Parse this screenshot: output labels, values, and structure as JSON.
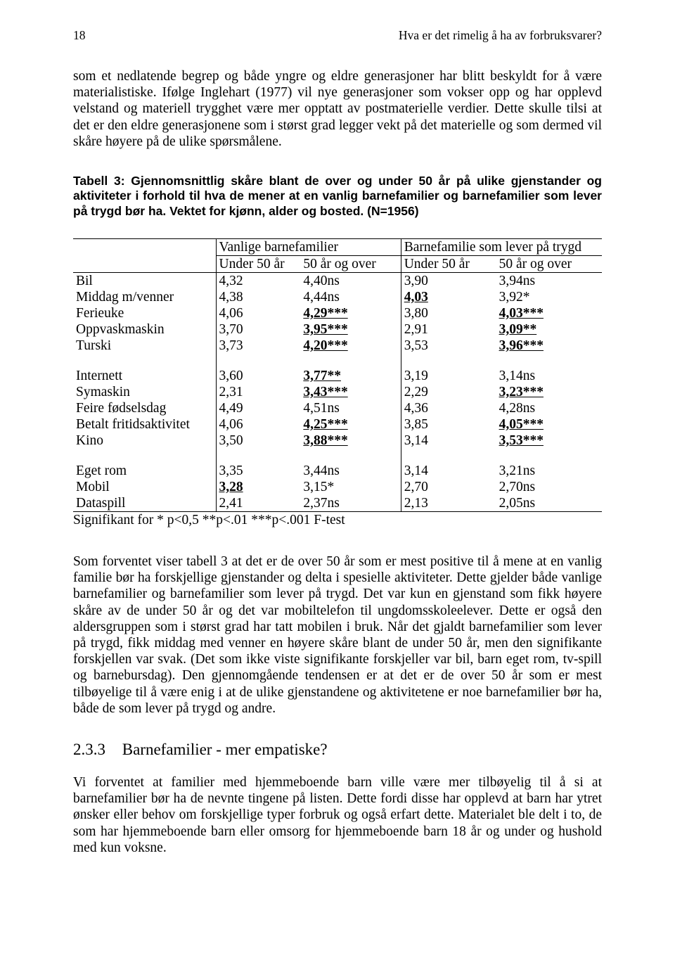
{
  "header": {
    "page_number": "18",
    "running_title": "Hva er det rimelig å ha av forbruksvarer?"
  },
  "para1": "som et nedlatende begrep og både yngre og eldre generasjoner har blitt beskyldt for å være materialistiske. Ifølge Inglehart (1977) vil nye generasjoner som vokser opp og har opplevd velstand og materiell trygghet være mer opptatt av postmaterielle verdier. Dette skulle tilsi at det er den eldre generasjonene som i størst grad legger vekt på det materielle og som dermed vil skåre høyere på de ulike spørsmålene.",
  "caption": "Tabell 3: Gjennomsnittlig skåre blant de over og under 50 år på ulike gjenstander og aktiviteter i forhold til hva de mener at en vanlig barnefamilier og barnefamilier som lever på trygd bør ha. Vektet for kjønn, alder og bosted. (N=1956)",
  "table": {
    "group1_label": "Vanlige barnefamilier",
    "group2_label": "Barnefamilie som lever på trygd",
    "sub_under": "Under 50 år",
    "sub_over": "50 år og over",
    "blocks": [
      [
        {
          "label": "Bil",
          "v": [
            "4,32",
            "4,40ns",
            "3,90",
            "3,94ns"
          ],
          "b": [
            false,
            false,
            false,
            false
          ],
          "u": [
            false,
            false,
            false,
            false
          ]
        },
        {
          "label": "Middag m/venner",
          "v": [
            "4,38",
            "4,44ns",
            "4,03",
            "3,92*"
          ],
          "b": [
            false,
            false,
            true,
            false
          ],
          "u": [
            false,
            false,
            true,
            false
          ]
        },
        {
          "label": "Ferieuke",
          "v": [
            "4,06",
            "4,29***",
            "3,80",
            "4,03***"
          ],
          "b": [
            false,
            true,
            false,
            true
          ],
          "u": [
            false,
            true,
            false,
            true
          ]
        },
        {
          "label": "Oppvaskmaskin",
          "v": [
            "3,70",
            "3,95***",
            "2,91",
            "3,09**"
          ],
          "b": [
            false,
            true,
            false,
            true
          ],
          "u": [
            false,
            true,
            false,
            true
          ]
        },
        {
          "label": "Turski",
          "v": [
            "3,73",
            "4,20***",
            "3,53",
            "3,96***"
          ],
          "b": [
            false,
            true,
            false,
            true
          ],
          "u": [
            false,
            true,
            false,
            true
          ]
        }
      ],
      [
        {
          "label": "Internett",
          "v": [
            "3,60",
            "3,77**",
            "3,19",
            "3,14ns"
          ],
          "b": [
            false,
            true,
            false,
            false
          ],
          "u": [
            false,
            true,
            false,
            false
          ]
        },
        {
          "label": "Symaskin",
          "v": [
            "2,31",
            "3,43***",
            "2,29",
            "3,23***"
          ],
          "b": [
            false,
            true,
            false,
            true
          ],
          "u": [
            false,
            true,
            false,
            true
          ]
        },
        {
          "label": "Feire fødselsdag",
          "v": [
            "4,49",
            "4,51ns",
            "4,36",
            "4,28ns"
          ],
          "b": [
            false,
            false,
            false,
            false
          ],
          "u": [
            false,
            false,
            false,
            false
          ]
        },
        {
          "label": "Betalt fritidsaktivitet",
          "v": [
            "4,06",
            "4,25***",
            "3,85",
            "4,05***"
          ],
          "b": [
            false,
            true,
            false,
            true
          ],
          "u": [
            false,
            true,
            false,
            true
          ]
        },
        {
          "label": "Kino",
          "v": [
            "3,50",
            "3,88***",
            "3,14",
            "3,53***"
          ],
          "b": [
            false,
            true,
            false,
            true
          ],
          "u": [
            false,
            true,
            false,
            true
          ]
        }
      ],
      [
        {
          "label": "Eget rom",
          "v": [
            "3,35",
            "3,44ns",
            "3,14",
            "3,21ns"
          ],
          "b": [
            false,
            false,
            false,
            false
          ],
          "u": [
            false,
            false,
            false,
            false
          ]
        },
        {
          "label": "Mobil",
          "v": [
            "3,28",
            "3,15*",
            "2,70",
            "2,70ns"
          ],
          "b": [
            true,
            false,
            false,
            false
          ],
          "u": [
            true,
            false,
            false,
            false
          ]
        },
        {
          "label": "Dataspill",
          "v": [
            "2,41",
            "2,37ns",
            "2,13",
            "2,05ns"
          ],
          "b": [
            false,
            false,
            false,
            false
          ],
          "u": [
            false,
            false,
            false,
            false
          ]
        }
      ]
    ]
  },
  "footnote": "Signifikant for * p<0,5 **p<.01 ***p<.001 F-test",
  "para2": "Som forventet viser tabell 3 at det er de over 50 år som er mest positive til å mene at en vanlig familie bør ha forskjellige gjenstander og delta i spesielle aktiviteter. Dette gjelder både vanlige barnefamilier og barnefamilier som lever på trygd. Det var kun en gjenstand som fikk høyere skåre av de under 50 år og det var mobiltelefon til ungdomsskoleelever. Dette er også den aldersgruppen som i størst grad har tatt mobilen i bruk. Når det gjaldt barnefamilier som lever på trygd, fikk middag med venner en høyere skåre blant de under 50 år, men den signifikante forskjellen var svak. (Det som ikke viste signifikante forskjeller var bil, barn eget rom, tv-spill og barnebursdag). Den gjennomgående tendensen er at det er de over 50 år som er mest tilbøyelige til å være enig i at de ulike gjenstandene og aktivitetene er noe barnefamilier bør ha, både de som lever på trygd og andre.",
  "heading": {
    "num": "2.3.3",
    "title": "Barnefamilier - mer empatiske?"
  },
  "para3": "Vi forventet at familier med hjemmeboende barn ville være mer tilbøyelig til å si at barnefamilier bør ha de nevnte tingene på listen. Dette fordi disse har opplevd at barn har ytret ønsker eller behov om forskjellige typer forbruk og også erfart dette. Materialet ble delt i to, de som har hjemmeboende barn eller omsorg for hjemmeboende barn 18 år og under og hushold med kun voksne."
}
